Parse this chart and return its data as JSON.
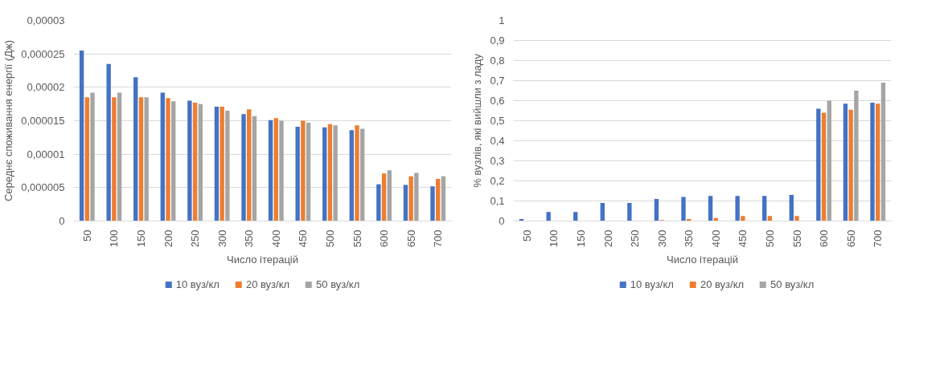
{
  "chart_data": [
    {
      "type": "bar",
      "xlabel": "Число ітерацій",
      "ylabel": "Середнє споживання енергії (Дж)",
      "categories": [
        "50",
        "100",
        "150",
        "200",
        "250",
        "300",
        "350",
        "400",
        "450",
        "500",
        "550",
        "600",
        "650",
        "700"
      ],
      "series": [
        {
          "name": "10 вуз/кл",
          "color": "#4472c4",
          "values": [
            2.55e-05,
            2.35e-05,
            2.15e-05,
            1.92e-05,
            1.8e-05,
            1.71e-05,
            1.6e-05,
            1.51e-05,
            1.41e-05,
            1.4e-05,
            1.36e-05,
            5.5e-06,
            5.4e-06,
            5.2e-06
          ]
        },
        {
          "name": "20 вуз/кл",
          "color": "#ed7d31",
          "values": [
            1.85e-05,
            1.85e-05,
            1.85e-05,
            1.84e-05,
            1.77e-05,
            1.71e-05,
            1.67e-05,
            1.54e-05,
            1.5e-05,
            1.45e-05,
            1.43e-05,
            7.1e-06,
            6.7e-06,
            6.3e-06
          ]
        },
        {
          "name": "50 вуз/кл",
          "color": "#a5a5a5",
          "values": [
            1.92e-05,
            1.92e-05,
            1.85e-05,
            1.79e-05,
            1.75e-05,
            1.65e-05,
            1.57e-05,
            1.5e-05,
            1.47e-05,
            1.43e-05,
            1.38e-05,
            7.6e-06,
            7.2e-06,
            6.7e-06
          ]
        }
      ],
      "ylim": [
        0,
        3e-05
      ],
      "yticks": [
        0,
        {
          "value": 5e-06,
          "label": "0,000005"
        },
        {
          "value": 1e-05,
          "label": "0,00001"
        },
        {
          "value": 1.5e-05,
          "label": "0,000015"
        },
        {
          "value": 2e-05,
          "label": "0,00002"
        },
        {
          "value": 2.5e-05,
          "label": "0,000025"
        },
        {
          "value": 3e-05,
          "label": "0,00003"
        }
      ],
      "grid": "y",
      "legend": "bottom"
    },
    {
      "type": "bar",
      "xlabel": "Число ітерацій",
      "ylabel": "% вузлів, які вийшли з ладу",
      "categories": [
        "50",
        "100",
        "150",
        "200",
        "250",
        "300",
        "350",
        "400",
        "450",
        "500",
        "550",
        "600",
        "650",
        "700"
      ],
      "series": [
        {
          "name": "10 вуз/кл",
          "color": "#4472c4",
          "values": [
            0.01,
            0.045,
            0.045,
            0.09,
            0.09,
            0.11,
            0.12,
            0.125,
            0.125,
            0.125,
            0.13,
            0.56,
            0.585,
            0.59
          ]
        },
        {
          "name": "20 вуз/кл",
          "color": "#ed7d31",
          "values": [
            0,
            0,
            0,
            0,
            0,
            0.005,
            0.01,
            0.015,
            0.025,
            0.025,
            0.025,
            0.54,
            0.555,
            0.585
          ]
        },
        {
          "name": "50 вуз/кл",
          "color": "#a5a5a5",
          "values": [
            0,
            0,
            0,
            0,
            0,
            0,
            0,
            0,
            0,
            0,
            0,
            0.6,
            0.65,
            0.69
          ]
        }
      ],
      "ylim": [
        0,
        1
      ],
      "yticks": [
        0,
        {
          "value": 0.1,
          "label": "0,1"
        },
        {
          "value": 0.2,
          "label": "0,2"
        },
        {
          "value": 0.3,
          "label": "0,3"
        },
        {
          "value": 0.4,
          "label": "0,4"
        },
        {
          "value": 0.5,
          "label": "0,5"
        },
        {
          "value": 0.6,
          "label": "0,6"
        },
        {
          "value": 0.7,
          "label": "0,7"
        },
        {
          "value": 0.8,
          "label": "0,8"
        },
        {
          "value": 0.9,
          "label": "0,9"
        },
        1
      ],
      "grid": "y",
      "legend": "bottom"
    }
  ]
}
